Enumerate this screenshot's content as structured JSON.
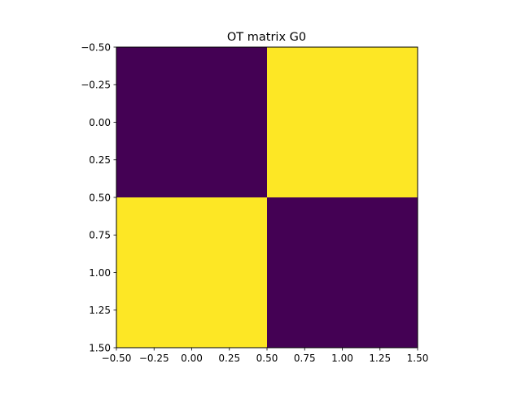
{
  "chart_data": {
    "type": "heatmap",
    "title": "OT matrix G0",
    "xlabel": "",
    "ylabel": "",
    "xlim": [
      -0.5,
      1.5
    ],
    "ylim": [
      1.5,
      -0.5
    ],
    "y_inverted": true,
    "grid": false,
    "legend": "none",
    "colormap": "viridis",
    "rows": [
      0,
      1
    ],
    "columns": [
      0,
      1
    ],
    "values": [
      [
        0,
        1
      ],
      [
        1,
        0
      ]
    ],
    "colors": {
      "low": "#440154",
      "high": "#fde725"
    },
    "xticks": [
      -0.5,
      -0.25,
      0,
      0.25,
      0.5,
      0.75,
      1,
      1.25,
      1.5
    ],
    "xtick_labels": [
      "−0.50",
      "−0.25",
      "0.00",
      "0.25",
      "0.50",
      "0.75",
      "1.00",
      "1.25",
      "1.50"
    ],
    "yticks": [
      -0.5,
      -0.25,
      0,
      0.25,
      0.5,
      0.75,
      1,
      1.25,
      1.5
    ],
    "ytick_labels": [
      "−0.50",
      "−0.25",
      "0.00",
      "0.25",
      "0.50",
      "0.75",
      "1.00",
      "1.25",
      "1.50"
    ]
  }
}
